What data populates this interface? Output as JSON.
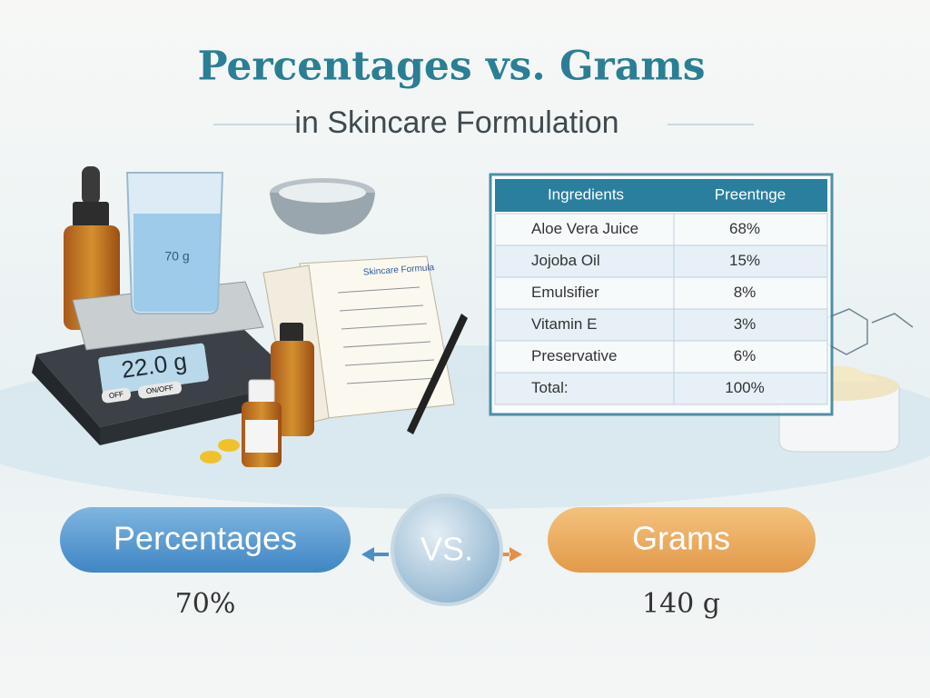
{
  "header": {
    "title": "Percentages vs. Grams",
    "subtitle": "in Skincare Formulation"
  },
  "illustration": {
    "beaker_label": "70 g",
    "scale_display": "22.0 g",
    "scale_buttons": [
      "OFF",
      "ON/OFF"
    ],
    "notebook_title": "Skincare Formula"
  },
  "table": {
    "columns": [
      "Ingredients",
      "Preentnge"
    ],
    "rows": [
      [
        "Aloe Vera Juice",
        "68%"
      ],
      [
        "Jojoba Oil",
        "15%"
      ],
      [
        "Emulsifier",
        "8%"
      ],
      [
        "Vitamin E",
        "3%"
      ],
      [
        "Preservative",
        "6%"
      ],
      [
        "Total:",
        "100%"
      ]
    ]
  },
  "comparison": {
    "left": {
      "label": "Percentages",
      "value": "70%"
    },
    "middle": "VS.",
    "right": {
      "label": "Grams",
      "value": "140 g"
    }
  }
}
